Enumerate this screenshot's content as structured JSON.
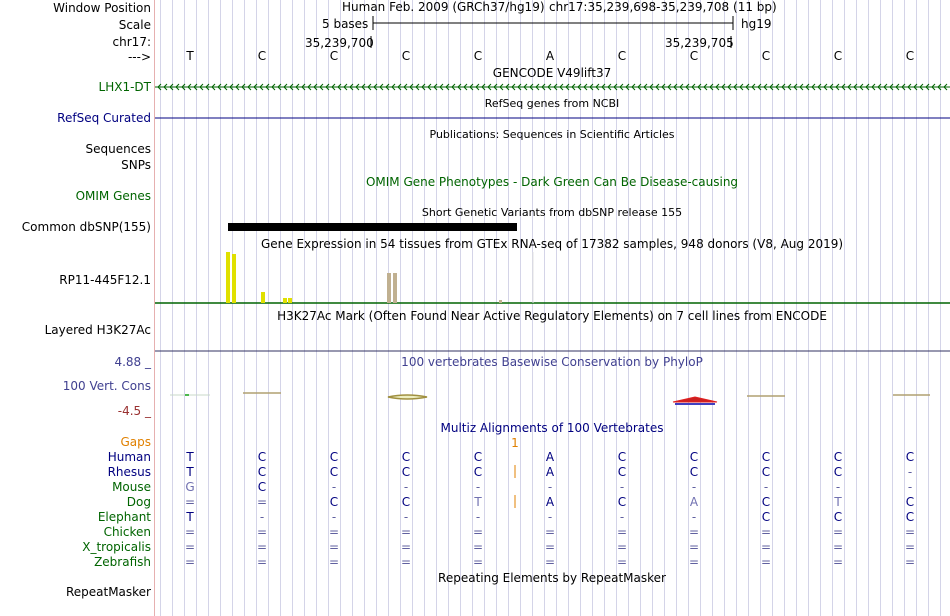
{
  "labels": {
    "window_position": "Window Position",
    "scale": "Scale",
    "chrom": "chr17:",
    "arrow": "--->",
    "gene_lhx1": "LHX1-DT",
    "refseq": "RefSeq Curated",
    "sequences": "Sequences",
    "snps": "SNPs",
    "omim": "OMIM Genes",
    "common_dbsnp": "Common dbSNP(155)",
    "rp11": "RP11-445F12.1",
    "h3k27ac": "Layered H3K27Ac",
    "cons_max": "4.88 _",
    "cons_name": "100 Vert. Cons",
    "cons_min": "-4.5 _",
    "gaps": "Gaps",
    "repeatmasker": "RepeatMasker"
  },
  "header": {
    "assembly": "Human Feb. 2009 (GRCh37/hg19)",
    "position": "chr17:35,239,698-35,239,708 (11 bp)",
    "scale_text": "5 bases",
    "scale_db": "hg19",
    "coord_left": "35,239,700",
    "coord_right": "35,239,705"
  },
  "bases": [
    "T",
    "C",
    "C",
    "C",
    "C",
    "A",
    "C",
    "C",
    "C",
    "C",
    "C"
  ],
  "tracks": {
    "gencode": "GENCODE V49lift37",
    "refseq": "RefSeq genes from NCBI",
    "publications": "Publications: Sequences in Scientific Articles",
    "omim": "OMIM Gene Phenotypes - Dark Green Can Be Disease-causing",
    "dbsnp": "Short Genetic Variants from dbSNP release 155",
    "gtex": "Gene Expression in 54 tissues from GTEx RNA-seq of 17382 samples, 948 donors (V8, Aug 2019)",
    "h3k27ac": "H3K27Ac Mark (Often Found Near Active Regulatory Elements) on 7 cell lines from ENCODE",
    "phylop": "100 vertebrates Basewise Conservation by PhyloP",
    "multiz": "Multiz Alignments of 100 Vertebrates",
    "gap_mark": "1",
    "repeatmasker": "Repeating Elements by RepeatMasker"
  },
  "species": [
    {
      "name": "Human",
      "color": "#000080",
      "bases": [
        "T",
        "C",
        "C",
        "C",
        "C",
        "A",
        "C",
        "C",
        "C",
        "C",
        "C"
      ]
    },
    {
      "name": "Rhesus",
      "color": "#000080",
      "bases": [
        "T",
        "C",
        "C",
        "C",
        "C",
        "A",
        "C",
        "C",
        "C",
        "C",
        "-"
      ]
    },
    {
      "name": "Mouse",
      "color": "#006400",
      "bases": [
        "G",
        "C",
        "-",
        "-",
        "-",
        "-",
        "-",
        "-",
        "-",
        "-",
        "-"
      ]
    },
    {
      "name": "Dog",
      "color": "#006400",
      "bases": [
        "=",
        "=",
        "C",
        "C",
        "T",
        "A",
        "C",
        "A",
        "C",
        "T",
        "C"
      ]
    },
    {
      "name": "Elephant",
      "color": "#006400",
      "bases": [
        "T",
        "-",
        "-",
        "-",
        "-",
        "-",
        "-",
        "-",
        "C",
        "C",
        "C"
      ]
    },
    {
      "name": "Chicken",
      "color": "#006400",
      "bases": [
        "=",
        "=",
        "=",
        "=",
        "=",
        "=",
        "=",
        "=",
        "=",
        "=",
        "="
      ]
    },
    {
      "name": "X_tropicalis",
      "color": "#006400",
      "bases": [
        "=",
        "=",
        "=",
        "=",
        "=",
        "=",
        "=",
        "=",
        "=",
        "=",
        "="
      ]
    },
    {
      "name": "Zebrafish",
      "color": "#006400",
      "bases": [
        "=",
        "=",
        "=",
        "=",
        "=",
        "=",
        "=",
        "=",
        "=",
        "=",
        "="
      ]
    }
  ],
  "colors": {
    "gene_green": "#006400",
    "refseq_navy": "#000080",
    "cons_blue": "#404090",
    "cons_neg": "#993030",
    "gaps_orange": "#e08000",
    "gtex_yellow": "#e0e000",
    "gtex_tan": "#c0b090"
  }
}
